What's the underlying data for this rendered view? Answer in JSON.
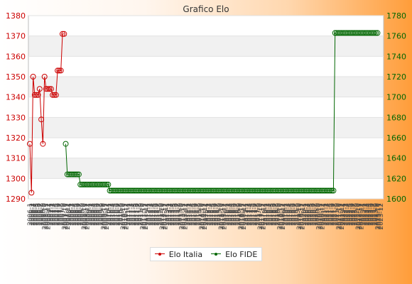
{
  "chart_data": {
    "type": "line",
    "title": "Grafico Elo",
    "legend_position": "bottom-center",
    "grid": true,
    "y_left": {
      "min": 1290,
      "max": 1380,
      "step": 10,
      "color": "#cc0000"
    },
    "y_right": {
      "min": 1600,
      "max": 1780,
      "step": 20,
      "color": "#006600"
    },
    "x_tick_labels": [
      "2006-1",
      "2006-2",
      "2006-3",
      "2006-4",
      "2006-5",
      "2006-6",
      "2006-7",
      "2006-8",
      "2006-9",
      "2006-10",
      "2006-11",
      "2006-12",
      "2007-1",
      "2007-2",
      "2007-3",
      "2007-4",
      "2007-5",
      "2007-6",
      "2007-7",
      "2007-8",
      "2007-9",
      "2007-10",
      "2007-11",
      "2007-12",
      "2008-1",
      "2008-2",
      "2008-3",
      "2008-4",
      "2008-5",
      "2008-6",
      "2008-7",
      "2008-8",
      "2008-9",
      "2008-10",
      "2008-11",
      "2008-12",
      "2009-1",
      "2009-2",
      "2009-3",
      "2009-4",
      "2009-5",
      "2009-6",
      "2009-7",
      "2009-8",
      "2009-9",
      "2009-10",
      "2009-11",
      "2009-12",
      "2010-1",
      "2010-2",
      "2010-3",
      "2010-4",
      "2010-5",
      "2010-6",
      "2010-7",
      "2010-8",
      "2010-9",
      "2010-10",
      "2010-11",
      "2010-12",
      "2011-1",
      "2011-2",
      "2011-3",
      "2011-4",
      "2011-5",
      "2011-6",
      "2011-7",
      "2011-8",
      "2011-9",
      "2011-10",
      "2011-11",
      "2011-12",
      "2012-1",
      "2012-2",
      "2012-3",
      "2012-4",
      "2012-5",
      "2012-6",
      "2012-7",
      "2012-8",
      "2012-9",
      "2012-10",
      "2012-11",
      "2012-12",
      "2013-1",
      "2013-2",
      "2013-3",
      "2013-4",
      "2013-5",
      "2013-6",
      "2013-7",
      "2013-8",
      "2013-9",
      "2013-10",
      "2013-11",
      "2013-12",
      "2014-1",
      "2014-2",
      "2014-3",
      "2014-4",
      "2014-5",
      "2014-6",
      "2014-7",
      "2014-8",
      "2014-9",
      "2014-10",
      "2014-11",
      "2014-12",
      "2015-1",
      "2015-2",
      "2015-3",
      "2015-4",
      "2015-5",
      "2015-6",
      "2015-7",
      "2015-8",
      "2015-9",
      "2015-10",
      "2015-11",
      "2015-12",
      "2016-1",
      "2016-2",
      "2016-3",
      "2016-4",
      "2016-5",
      "2016-6",
      "2016-7",
      "2016-8",
      "2016-9",
      "2016-10",
      "2016-11",
      "2016-12",
      "2017-1",
      "2017-2",
      "2017-3",
      "2017-4",
      "2017-5",
      "2017-6",
      "2017-7",
      "2017-8",
      "2017-9",
      "2017-10",
      "2017-11",
      "2017-12",
      "2018-1",
      "2018-2",
      "2018-3",
      "2018-4",
      "2018-5",
      "2018-6",
      "2018-7",
      "2018-8",
      "2018-9",
      "2018-10",
      "2018-11",
      "2018-12",
      "2019-1",
      "2019-2",
      "2019-3",
      "2019-4",
      "2019-5",
      "2019-6",
      "2019-7",
      "2019-8",
      "2019-9",
      "2019-10",
      "2019-11",
      "2019-12",
      "2020-1",
      "2020-2",
      "2020-3",
      "2020-4",
      "2020-5",
      "2020-6",
      "2020-7",
      "2020-8",
      "2020-9",
      "2020-10",
      "2020-11",
      "2020-12",
      "2021-1",
      "2021-2",
      "2021-3",
      "2021-4",
      "2021-5",
      "2021-6",
      "2021-7",
      "2021-8",
      "2021-9",
      "2021-10",
      "2021-11",
      "2021-12",
      "2022-1",
      "2022-2",
      "2022-3",
      "2022-4",
      "2022-5",
      "2022-6",
      "2022-7",
      "2022-8",
      "2022-9",
      "2022-10",
      "2022-11",
      "2022-12",
      "2023-1",
      "2023-2",
      "2023-3",
      "2023-4",
      "2023-5",
      "2023-6",
      "2023-7",
      "2023-8",
      "2023-9",
      "2023-10",
      "2023-11",
      "2023-12"
    ],
    "series": [
      {
        "name": "Elo Italia",
        "axis": "left",
        "color": "#cc0000",
        "start_index": 0,
        "values": [
          1317,
          1293,
          1350,
          1341,
          1341,
          1341,
          1344,
          1329,
          1317,
          1350,
          1344,
          1344,
          1344,
          1344,
          1341,
          1341,
          1341,
          1353,
          1353,
          1353,
          1371,
          1371
        ]
      },
      {
        "name": "Elo FIDE",
        "axis": "right",
        "color": "#006600",
        "start_index": 22,
        "values": [
          1654,
          1624,
          1624,
          1624,
          1624,
          1624,
          1624,
          1624,
          1624,
          1614,
          1614,
          1614,
          1614,
          1614,
          1614,
          1614,
          1614,
          1614,
          1614,
          1614,
          1614,
          1614,
          1614,
          1614,
          1614,
          1614,
          1614,
          1608,
          1608,
          1608,
          1608,
          1608,
          1608,
          1608,
          1608,
          1608,
          1608,
          1608,
          1608,
          1608,
          1608,
          1608,
          1608,
          1608,
          1608,
          1608,
          1608,
          1608,
          1608,
          1608,
          1608,
          1608,
          1608,
          1608,
          1608,
          1608,
          1608,
          1608,
          1608,
          1608,
          1608,
          1608,
          1608,
          1608,
          1608,
          1608,
          1608,
          1608,
          1608,
          1608,
          1608,
          1608,
          1608,
          1608,
          1608,
          1608,
          1608,
          1608,
          1608,
          1608,
          1608,
          1608,
          1608,
          1608,
          1608,
          1608,
          1608,
          1608,
          1608,
          1608,
          1608,
          1608,
          1608,
          1608,
          1608,
          1608,
          1608,
          1608,
          1608,
          1608,
          1608,
          1608,
          1608,
          1608,
          1608,
          1608,
          1608,
          1608,
          1608,
          1608,
          1608,
          1608,
          1608,
          1608,
          1608,
          1608,
          1608,
          1608,
          1608,
          1608,
          1608,
          1608,
          1608,
          1608,
          1608,
          1608,
          1608,
          1608,
          1608,
          1608,
          1608,
          1608,
          1608,
          1608,
          1608,
          1608,
          1608,
          1608,
          1608,
          1608,
          1608,
          1608,
          1608,
          1608,
          1608,
          1608,
          1608,
          1608,
          1608,
          1608,
          1608,
          1608,
          1608,
          1608,
          1608,
          1608,
          1608,
          1608,
          1608,
          1608,
          1608,
          1608,
          1608,
          1608,
          1608,
          1763,
          1763,
          1763,
          1763,
          1763,
          1763,
          1763,
          1763,
          1763,
          1763,
          1763,
          1763,
          1763,
          1763,
          1763,
          1763,
          1763,
          1763,
          1763,
          1763,
          1763,
          1763,
          1763,
          1763,
          1763,
          1763,
          1763
        ]
      }
    ]
  }
}
